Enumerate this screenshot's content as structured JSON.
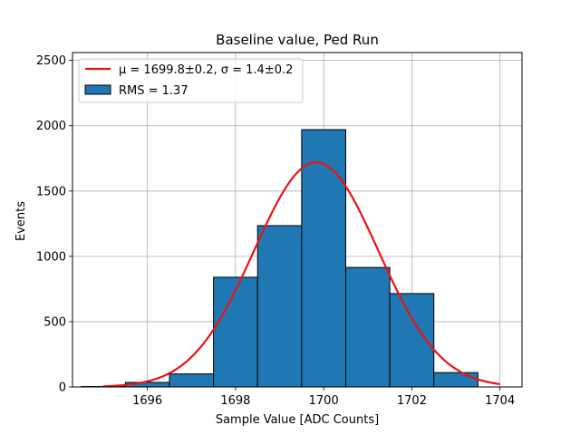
{
  "chart_data": {
    "type": "bar",
    "title": "Baseline value, Ped Run",
    "xlabel": "Sample Value [ADC Counts]",
    "ylabel": "Events",
    "xlim": [
      1694.3,
      1704.5
    ],
    "ylim": [
      0,
      2560
    ],
    "xticks": [
      1696,
      1698,
      1700,
      1702,
      1704
    ],
    "yticks": [
      0,
      500,
      1000,
      1500,
      2000,
      2500
    ],
    "grid": true,
    "legend_position": "top-left",
    "histogram": {
      "name": "RMS = 1.37",
      "color": "#1f77b4",
      "bins": [
        {
          "x0": 1694.5,
          "x1": 1695.5,
          "count": 3
        },
        {
          "x0": 1695.5,
          "x1": 1696.5,
          "count": 35
        },
        {
          "x0": 1696.5,
          "x1": 1697.5,
          "count": 100
        },
        {
          "x0": 1697.5,
          "x1": 1698.5,
          "count": 840
        },
        {
          "x0": 1698.5,
          "x1": 1699.5,
          "count": 1235
        },
        {
          "x0": 1699.5,
          "x1": 1700.5,
          "count": 1970
        },
        {
          "x0": 1700.5,
          "x1": 1701.5,
          "count": 915
        },
        {
          "x0": 1701.5,
          "x1": 1702.5,
          "count": 715
        },
        {
          "x0": 1702.5,
          "x1": 1703.5,
          "count": 110
        }
      ]
    },
    "fit": {
      "name": "μ = 1699.8±0.2, σ = 1.4±0.2",
      "color": "#ee1111",
      "mu": 1699.83,
      "sigma": 1.41,
      "amplitude": 1720,
      "x_range": [
        1695,
        1704
      ]
    }
  }
}
